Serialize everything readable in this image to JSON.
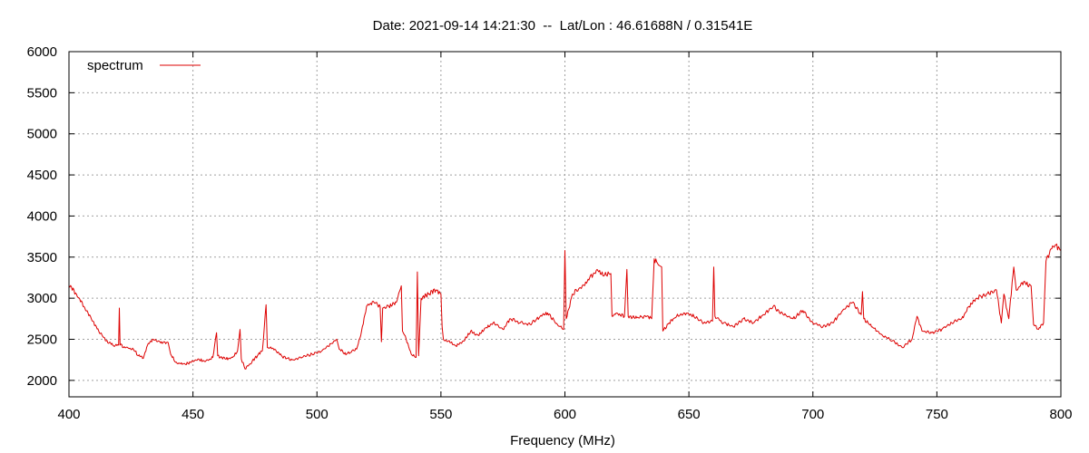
{
  "chart_data": {
    "type": "line",
    "title": "Date: 2021-09-14 14:21:30  --  Lat/Lon : 46.61688N / 0.31541E",
    "xlabel": "Frequency (MHz)",
    "ylabel": "",
    "xlim": [
      400,
      800
    ],
    "ylim": [
      1800,
      6000
    ],
    "x_ticks": [
      400,
      450,
      500,
      550,
      600,
      650,
      700,
      750,
      800
    ],
    "y_ticks": [
      2000,
      2500,
      3000,
      3500,
      4000,
      4500,
      5000,
      5500,
      6000
    ],
    "grid": true,
    "legend_position": "top-left",
    "series": [
      {
        "name": "spectrum",
        "color": "#dd0000",
        "points": [
          [
            400,
            3150
          ],
          [
            403,
            3050
          ],
          [
            406,
            2900
          ],
          [
            409,
            2750
          ],
          [
            412,
            2600
          ],
          [
            415,
            2480
          ],
          [
            418,
            2420
          ],
          [
            420,
            2430
          ],
          [
            420.3,
            2880
          ],
          [
            420.6,
            2430
          ],
          [
            423,
            2400
          ],
          [
            426,
            2380
          ],
          [
            428,
            2300
          ],
          [
            430,
            2270
          ],
          [
            432,
            2450
          ],
          [
            434,
            2500
          ],
          [
            436,
            2480
          ],
          [
            438,
            2460
          ],
          [
            440,
            2460
          ],
          [
            441,
            2320
          ],
          [
            443,
            2220
          ],
          [
            446,
            2200
          ],
          [
            449,
            2220
          ],
          [
            452,
            2260
          ],
          [
            455,
            2230
          ],
          [
            458,
            2280
          ],
          [
            459.5,
            2580
          ],
          [
            460,
            2300
          ],
          [
            463,
            2260
          ],
          [
            466,
            2280
          ],
          [
            468,
            2360
          ],
          [
            469,
            2620
          ],
          [
            469.5,
            2260
          ],
          [
            471,
            2140
          ],
          [
            473,
            2200
          ],
          [
            476,
            2300
          ],
          [
            478,
            2360
          ],
          [
            479.5,
            2920
          ],
          [
            480,
            2400
          ],
          [
            483,
            2380
          ],
          [
            486,
            2290
          ],
          [
            490,
            2250
          ],
          [
            494,
            2280
          ],
          [
            498,
            2320
          ],
          [
            502,
            2360
          ],
          [
            506,
            2450
          ],
          [
            508,
            2500
          ],
          [
            509,
            2380
          ],
          [
            512,
            2320
          ],
          [
            516,
            2380
          ],
          [
            518,
            2600
          ],
          [
            520,
            2900
          ],
          [
            523,
            2950
          ],
          [
            525.5,
            2900
          ],
          [
            526,
            2470
          ],
          [
            526.5,
            2880
          ],
          [
            529,
            2900
          ],
          [
            532,
            2950
          ],
          [
            534,
            3150
          ],
          [
            534.5,
            2600
          ],
          [
            536,
            2500
          ],
          [
            538,
            2320
          ],
          [
            540,
            2280
          ],
          [
            540.5,
            3320
          ],
          [
            541,
            2300
          ],
          [
            542,
            3000
          ],
          [
            545,
            3050
          ],
          [
            548,
            3100
          ],
          [
            550,
            3050
          ],
          [
            550.5,
            2650
          ],
          [
            551,
            2500
          ],
          [
            553,
            2480
          ],
          [
            556,
            2420
          ],
          [
            559,
            2480
          ],
          [
            562,
            2600
          ],
          [
            565,
            2550
          ],
          [
            568,
            2640
          ],
          [
            571,
            2700
          ],
          [
            575,
            2620
          ],
          [
            578,
            2750
          ],
          [
            582,
            2700
          ],
          [
            586,
            2680
          ],
          [
            590,
            2780
          ],
          [
            593,
            2820
          ],
          [
            597,
            2680
          ],
          [
            599.5,
            2620
          ],
          [
            600,
            3580
          ],
          [
            600.5,
            2750
          ],
          [
            603,
            3050
          ],
          [
            607,
            3150
          ],
          [
            610,
            3250
          ],
          [
            613,
            3350
          ],
          [
            616,
            3280
          ],
          [
            618.5,
            3300
          ],
          [
            619,
            2780
          ],
          [
            621,
            2820
          ],
          [
            624,
            2780
          ],
          [
            625,
            3350
          ],
          [
            625.5,
            2780
          ],
          [
            629,
            2760
          ],
          [
            633,
            2780
          ],
          [
            635,
            2750
          ],
          [
            636,
            3480
          ],
          [
            638,
            3400
          ],
          [
            639,
            3380
          ],
          [
            639.5,
            2600
          ],
          [
            642,
            2700
          ],
          [
            645,
            2780
          ],
          [
            649,
            2820
          ],
          [
            652,
            2780
          ],
          [
            656,
            2700
          ],
          [
            659.5,
            2720
          ],
          [
            660,
            3380
          ],
          [
            660.5,
            2780
          ],
          [
            664,
            2700
          ],
          [
            668,
            2650
          ],
          [
            672,
            2750
          ],
          [
            676,
            2700
          ],
          [
            680,
            2800
          ],
          [
            684,
            2900
          ],
          [
            688,
            2800
          ],
          [
            692,
            2750
          ],
          [
            696,
            2850
          ],
          [
            700,
            2700
          ],
          [
            704,
            2650
          ],
          [
            708,
            2700
          ],
          [
            712,
            2850
          ],
          [
            716,
            2950
          ],
          [
            719.5,
            2800
          ],
          [
            720,
            3080
          ],
          [
            720.5,
            2750
          ],
          [
            724,
            2650
          ],
          [
            728,
            2550
          ],
          [
            732,
            2480
          ],
          [
            736,
            2400
          ],
          [
            740,
            2500
          ],
          [
            742,
            2780
          ],
          [
            744,
            2600
          ],
          [
            748,
            2580
          ],
          [
            752,
            2620
          ],
          [
            756,
            2700
          ],
          [
            760,
            2750
          ],
          [
            763,
            2900
          ],
          [
            766,
            3000
          ],
          [
            770,
            3050
          ],
          [
            774,
            3100
          ],
          [
            776,
            2700
          ],
          [
            777,
            3050
          ],
          [
            779,
            2750
          ],
          [
            781,
            3380
          ],
          [
            782,
            3100
          ],
          [
            785,
            3200
          ],
          [
            788,
            3150
          ],
          [
            789,
            2680
          ],
          [
            791,
            2620
          ],
          [
            793,
            2700
          ],
          [
            794,
            3450
          ],
          [
            796,
            3600
          ],
          [
            798,
            3650
          ],
          [
            800,
            3580
          ]
        ]
      }
    ]
  }
}
